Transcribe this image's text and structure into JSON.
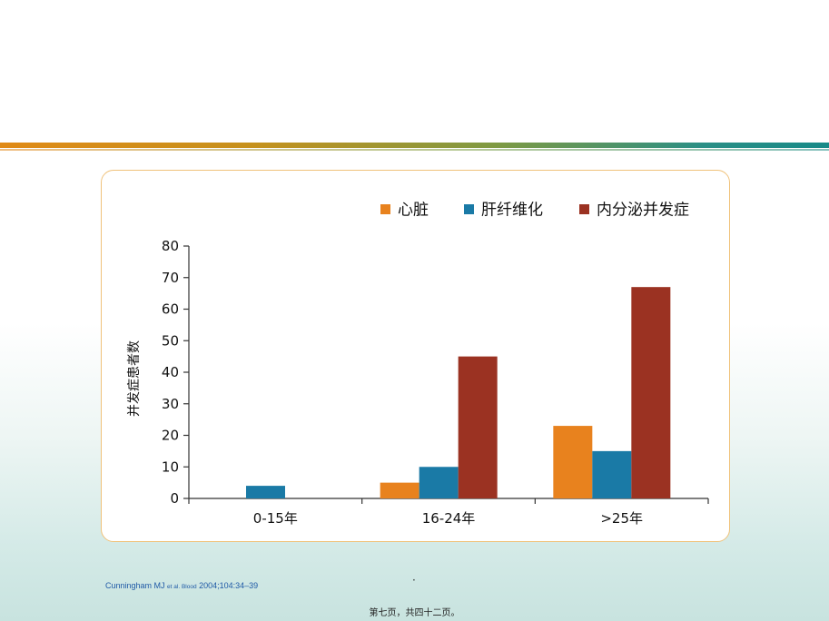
{
  "chart_data": {
    "type": "bar",
    "categories": [
      "0-15年",
      "16-24年",
      ">25年"
    ],
    "series": [
      {
        "name": "心脏",
        "color": "#e8821e",
        "values": [
          0,
          5,
          23
        ]
      },
      {
        "name": "肝纤维化",
        "color": "#1a7aa6",
        "values": [
          4,
          10,
          15
        ]
      },
      {
        "name": "内分泌并发症",
        "color": "#9b3222",
        "values": [
          0,
          45,
          67
        ]
      }
    ],
    "ylabel": "并发症患者数",
    "xlabel": "",
    "ylim": [
      0,
      80
    ],
    "yticks": [
      0,
      10,
      20,
      30,
      40,
      50,
      60,
      70,
      80
    ],
    "grid": false,
    "legend": "top-right"
  },
  "citation": {
    "authors": "Cunningham MJ",
    "etal": "et al. Blood",
    "ref": "2004;104:34–39"
  },
  "center_mark": "·",
  "footer": "第七页，共四十二页。"
}
